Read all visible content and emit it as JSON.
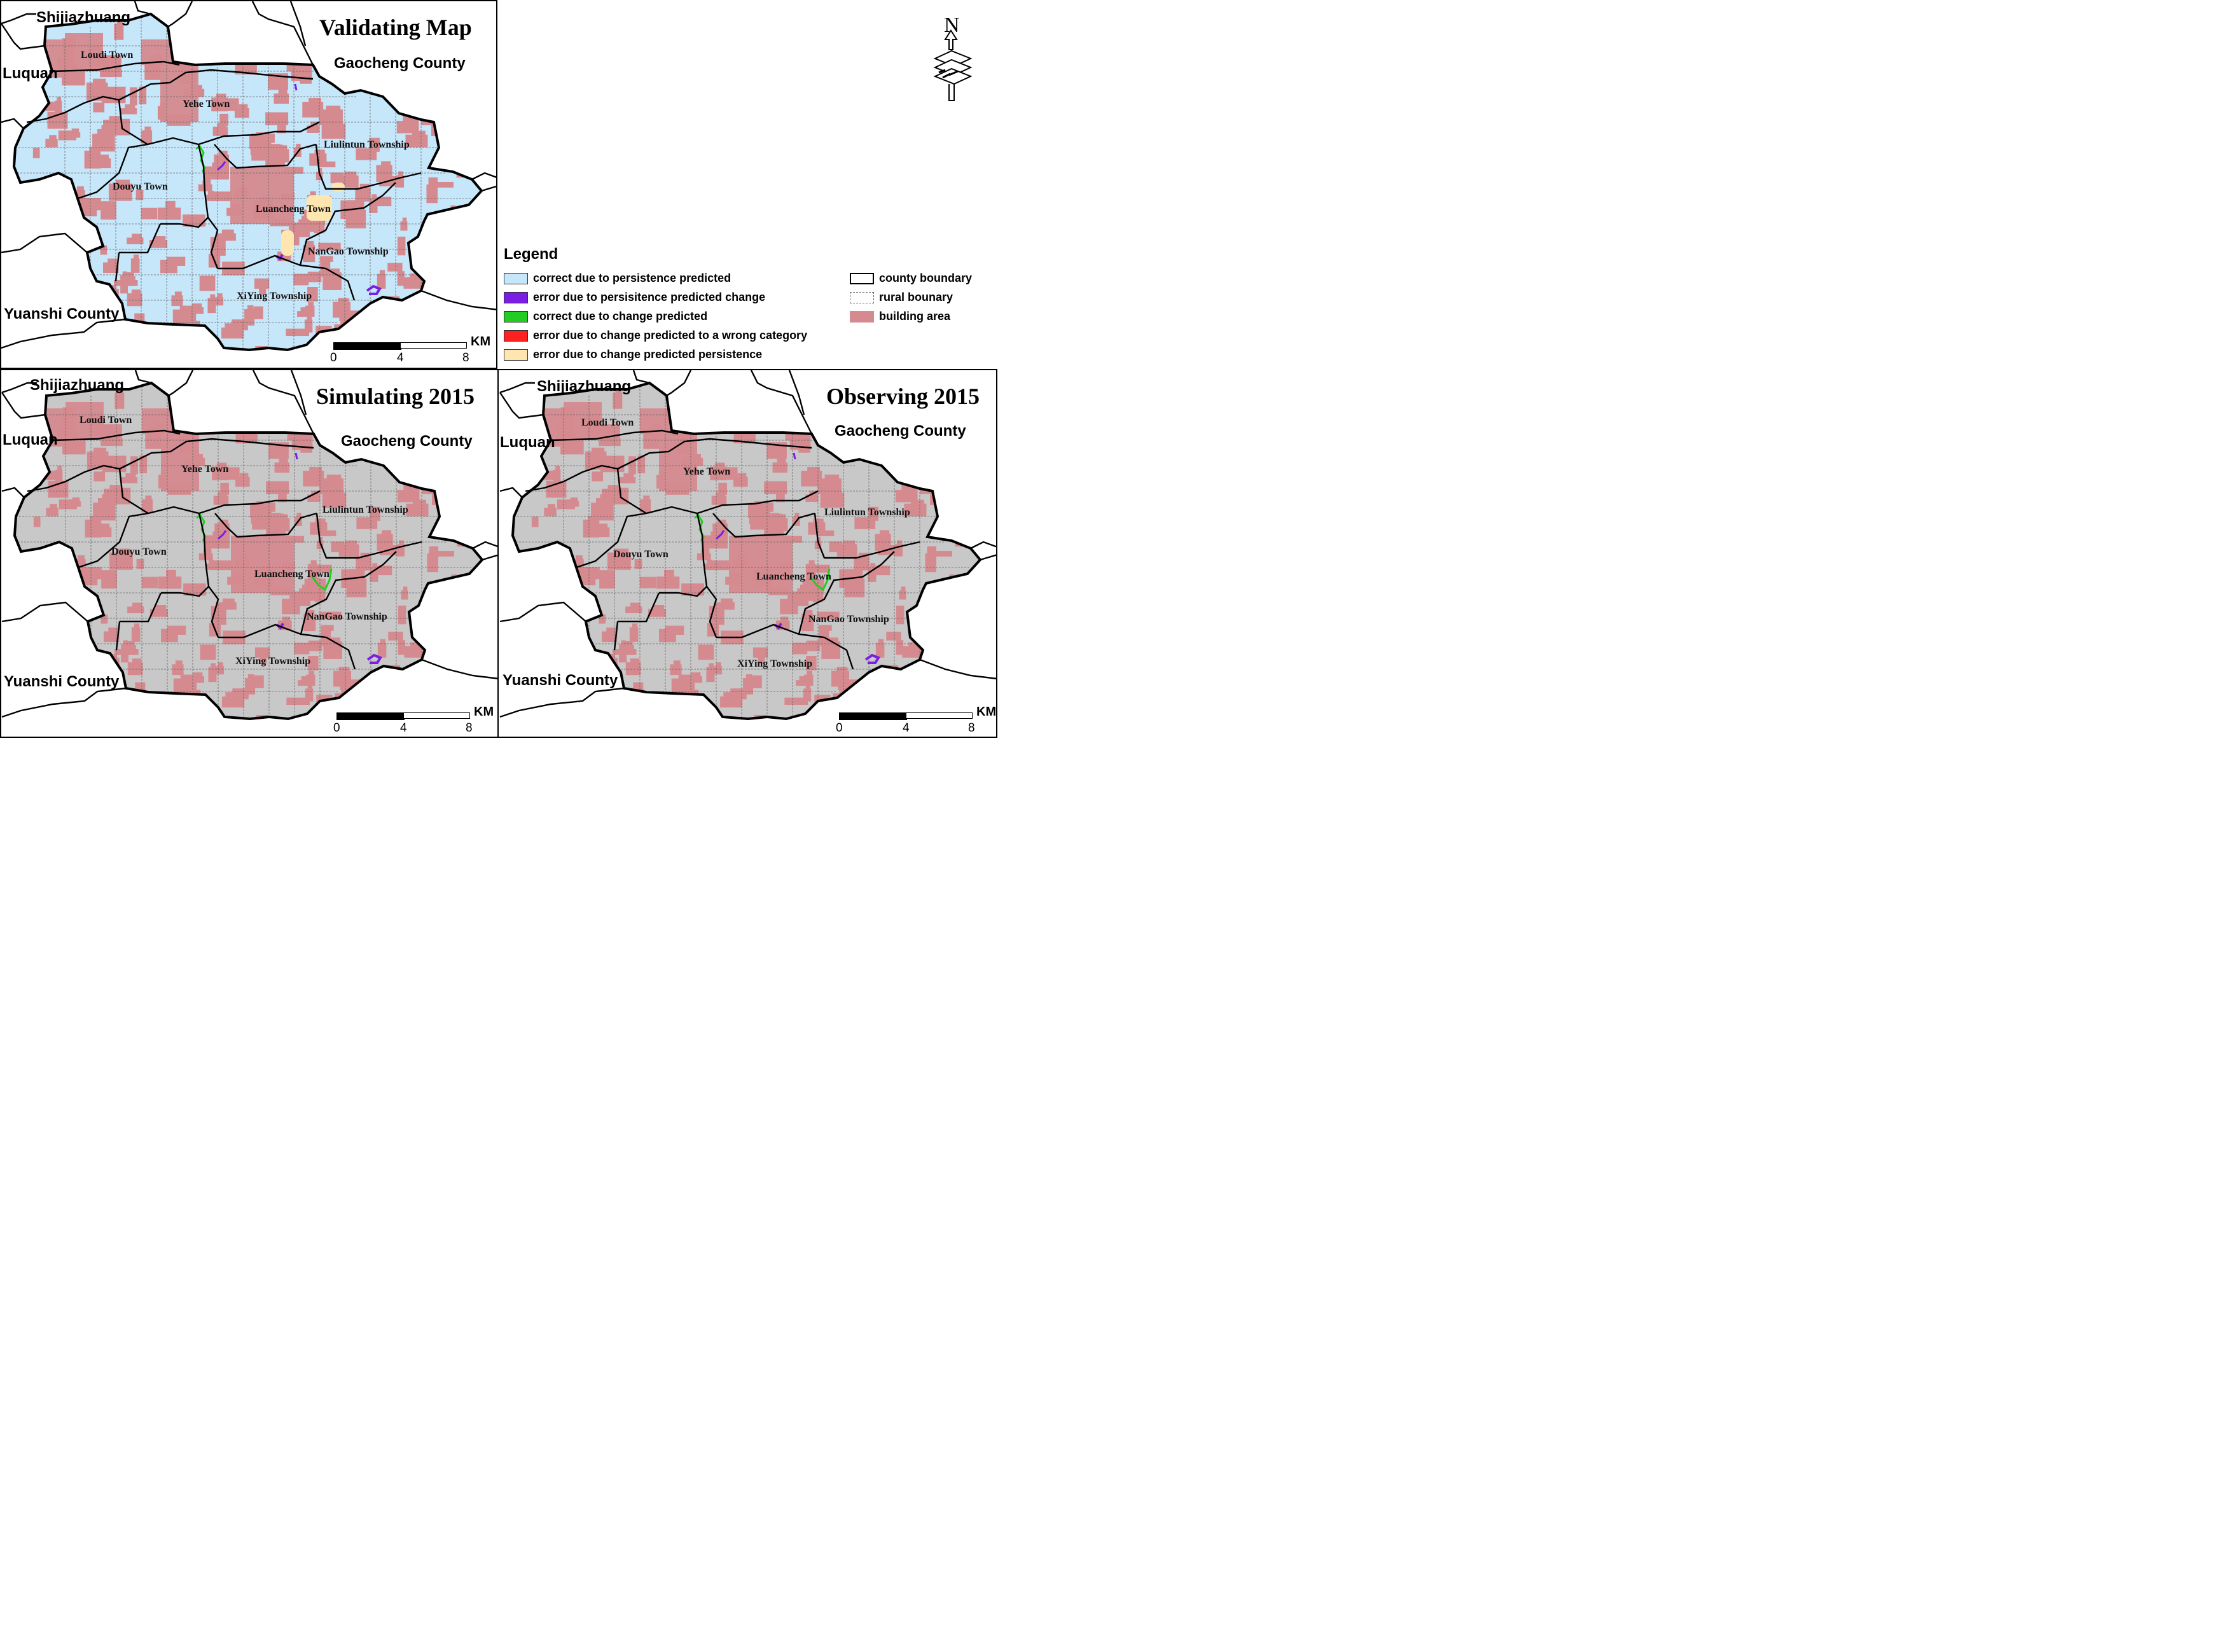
{
  "colors": {
    "correct_persistence": "#c6e6fa",
    "error_persistence_change": "#7a1ee6",
    "correct_change": "#22cc22",
    "error_wrong_category": "#ff2020",
    "error_change_persistence": "#ffe6b0",
    "building_area": "#d58a8f",
    "grey_fill": "#c8c8c8",
    "boundary": "#000000"
  },
  "panels": {
    "validating": {
      "title": "Validating Map",
      "fill": "correct_persistence",
      "labels": {
        "shijiazhuang": "Shijiazhuang",
        "luquan": "Luquan",
        "gaocheng": "Gaocheng County",
        "yuanshi": "Yuanshi County"
      }
    },
    "simulating": {
      "title": "Simulating 2015",
      "fill": "grey_fill",
      "labels": {
        "shijiazhuang": "Shijiazhuang",
        "luquan": "Luquan",
        "gaocheng": "Gaocheng County",
        "yuanshi": "Yuanshi County"
      }
    },
    "observing": {
      "title": "Observing 2015",
      "fill": "grey_fill",
      "labels": {
        "shijiazhuang": "Shijiazhuang",
        "luquan": "Luquan",
        "gaocheng": "Gaocheng County",
        "yuanshi": "Yuanshi County"
      }
    }
  },
  "towns": {
    "loudi": "Loudi Town",
    "yehe": "Yehe Town",
    "liulintun": "Liulintun Township",
    "douyu": "Douyu Town",
    "luancheng": "Luancheng Town",
    "nangao": "NanGao Township",
    "xiying": "XiYing Township"
  },
  "scale": {
    "unit": "KM",
    "ticks": [
      "0",
      "4",
      "8"
    ]
  },
  "north": {
    "letter": "N"
  },
  "legend": {
    "title": "Legend",
    "items": [
      {
        "label": "correct due to persistence predicted",
        "color": "#c6e6fa"
      },
      {
        "label": "error due to persisitence predicted change",
        "color": "#7a1ee6"
      },
      {
        "label": "correct due to change predicted",
        "color": "#22cc22"
      },
      {
        "label": "error due to change predicted to a wrong category",
        "color": "#ff2020"
      },
      {
        "label": "error due to change predicted persistence",
        "color": "#ffe6b0"
      }
    ],
    "boundaries": [
      {
        "label": "county boundary",
        "style": "county"
      },
      {
        "label": "rural bounary",
        "style": "rural"
      },
      {
        "label": "building area",
        "style": "building"
      }
    ]
  }
}
